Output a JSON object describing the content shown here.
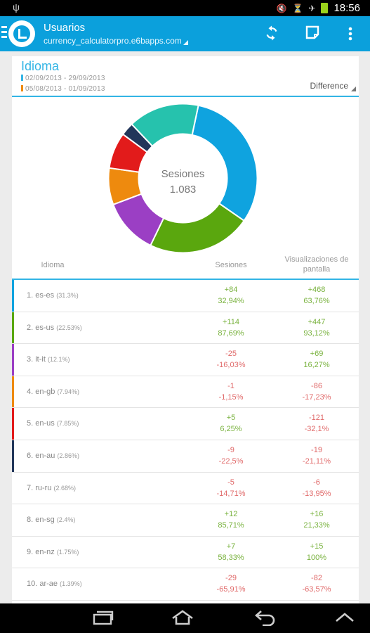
{
  "status": {
    "time": "18:56"
  },
  "actionbar": {
    "title": "Usuarios",
    "subtitle": "currency_calculatorpro.e6bapps.com"
  },
  "header": {
    "title": "Idioma",
    "range1": "02/09/2013 - 29/09/2013",
    "range2": "05/08/2013 - 01/09/2013",
    "compare_mode": "Difference"
  },
  "chart_data": {
    "type": "pie",
    "center_label": "Sesiones",
    "center_value": "1.083",
    "slices": [
      {
        "label": "es-es",
        "value": 31.3,
        "color": "#0fa3df"
      },
      {
        "label": "es-us",
        "value": 22.53,
        "color": "#5aa70e"
      },
      {
        "label": "it-it",
        "value": 12.1,
        "color": "#9b3fc4"
      },
      {
        "label": "en-gb",
        "value": 7.94,
        "color": "#ee8a0e"
      },
      {
        "label": "en-us",
        "value": 7.85,
        "color": "#e21b1b"
      },
      {
        "label": "en-au",
        "value": 2.86,
        "color": "#22365a"
      },
      {
        "label": "others",
        "value": 15.42,
        "color": "#26c2ad"
      }
    ]
  },
  "table": {
    "headers": {
      "lang": "Idioma",
      "sessions": "Sesiones",
      "views": "Visualizaciones de pantalla"
    },
    "rows": [
      {
        "lang": "1. es-es",
        "pct": "(31.3%)",
        "color": "#0fa3df",
        "s_delta": "+84",
        "s_pct": "32,94%",
        "v_delta": "+468",
        "v_pct": "63,76%",
        "s_sign": "pos",
        "v_sign": "pos"
      },
      {
        "lang": "2. es-us",
        "pct": "(22.53%)",
        "color": "#5aa70e",
        "s_delta": "+114",
        "s_pct": "87,69%",
        "v_delta": "+447",
        "v_pct": "93,12%",
        "s_sign": "pos",
        "v_sign": "pos"
      },
      {
        "lang": "3. it-it",
        "pct": "(12.1%)",
        "color": "#9b3fc4",
        "s_delta": "-25",
        "s_pct": "-16,03%",
        "v_delta": "+69",
        "v_pct": "16,27%",
        "s_sign": "neg",
        "v_sign": "pos"
      },
      {
        "lang": "4. en-gb",
        "pct": "(7.94%)",
        "color": "#ee8a0e",
        "s_delta": "-1",
        "s_pct": "-1,15%",
        "v_delta": "-86",
        "v_pct": "-17,23%",
        "s_sign": "neg",
        "v_sign": "neg"
      },
      {
        "lang": "5. en-us",
        "pct": "(7.85%)",
        "color": "#e21b1b",
        "s_delta": "+5",
        "s_pct": "6,25%",
        "v_delta": "-121",
        "v_pct": "-32,1%",
        "s_sign": "pos",
        "v_sign": "neg"
      },
      {
        "lang": "6. en-au",
        "pct": "(2.86%)",
        "color": "#22365a",
        "s_delta": "-9",
        "s_pct": "-22,5%",
        "v_delta": "-19",
        "v_pct": "-21,11%",
        "s_sign": "neg",
        "v_sign": "neg"
      },
      {
        "lang": "7. ru-ru",
        "pct": "(2.68%)",
        "color": "",
        "s_delta": "-5",
        "s_pct": "-14,71%",
        "v_delta": "-6",
        "v_pct": "-13,95%",
        "s_sign": "neg",
        "v_sign": "neg"
      },
      {
        "lang": "8. en-sg",
        "pct": "(2.4%)",
        "color": "",
        "s_delta": "+12",
        "s_pct": "85,71%",
        "v_delta": "+16",
        "v_pct": "21,33%",
        "s_sign": "pos",
        "v_sign": "pos"
      },
      {
        "lang": "9. en-nz",
        "pct": "(1.75%)",
        "color": "",
        "s_delta": "+7",
        "s_pct": "58,33%",
        "v_delta": "+15",
        "v_pct": "100%",
        "s_sign": "pos",
        "v_sign": "pos"
      },
      {
        "lang": "10. ar-ae",
        "pct": "(1.39%)",
        "color": "",
        "s_delta": "-29",
        "s_pct": "-65,91%",
        "v_delta": "-82",
        "v_pct": "-63,57%",
        "s_sign": "neg",
        "v_sign": "neg"
      }
    ]
  }
}
